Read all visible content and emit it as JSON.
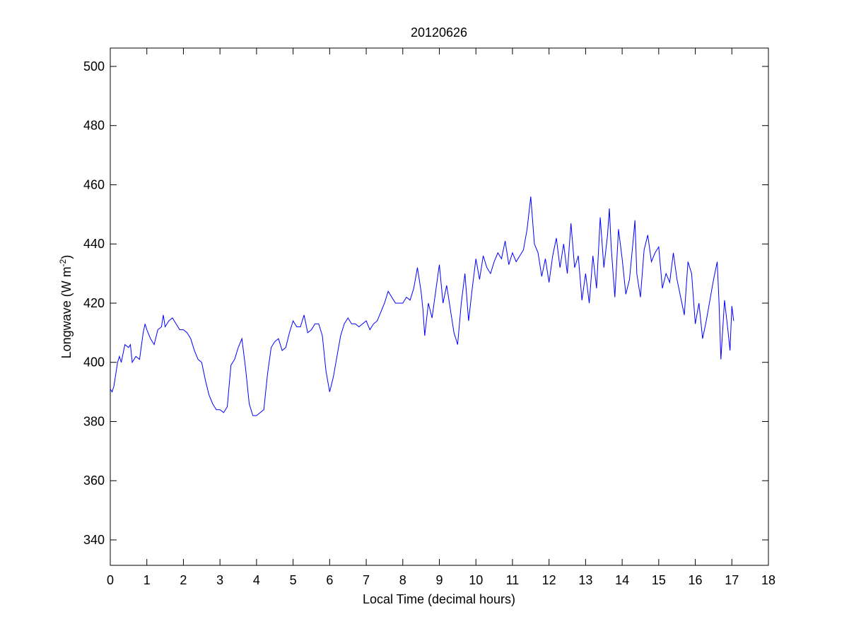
{
  "chart_data": {
    "type": "line",
    "title": "20120626",
    "xlabel": "Local Time (decimal hours)",
    "ylabel": [
      "Longwave (W m",
      "-2",
      ")"
    ],
    "x": [
      0,
      0.05,
      0.1,
      0.2,
      0.25,
      0.3,
      0.4,
      0.5,
      0.55,
      0.6,
      0.7,
      0.8,
      0.9,
      0.95,
      1.0,
      1.1,
      1.2,
      1.3,
      1.4,
      1.45,
      1.5,
      1.6,
      1.7,
      1.8,
      1.9,
      2.0,
      2.1,
      2.2,
      2.3,
      2.4,
      2.5,
      2.6,
      2.7,
      2.8,
      2.9,
      3.0,
      3.1,
      3.2,
      3.3,
      3.4,
      3.5,
      3.6,
      3.7,
      3.8,
      3.9,
      4.0,
      4.1,
      4.2,
      4.3,
      4.4,
      4.5,
      4.6,
      4.7,
      4.8,
      4.9,
      5.0,
      5.1,
      5.2,
      5.3,
      5.4,
      5.5,
      5.6,
      5.7,
      5.8,
      5.9,
      6.0,
      6.1,
      6.2,
      6.3,
      6.4,
      6.5,
      6.6,
      6.7,
      6.8,
      6.9,
      7.0,
      7.1,
      7.2,
      7.3,
      7.4,
      7.5,
      7.6,
      7.7,
      7.8,
      7.9,
      8.0,
      8.1,
      8.2,
      8.3,
      8.4,
      8.5,
      8.55,
      8.6,
      8.7,
      8.8,
      8.9,
      9.0,
      9.1,
      9.2,
      9.3,
      9.4,
      9.5,
      9.6,
      9.7,
      9.8,
      9.9,
      10.0,
      10.1,
      10.2,
      10.3,
      10.4,
      10.5,
      10.6,
      10.7,
      10.8,
      10.9,
      11.0,
      11.1,
      11.2,
      11.3,
      11.4,
      11.5,
      11.6,
      11.7,
      11.8,
      11.9,
      12.0,
      12.1,
      12.2,
      12.3,
      12.4,
      12.5,
      12.6,
      12.7,
      12.8,
      12.9,
      13.0,
      13.1,
      13.2,
      13.3,
      13.4,
      13.5,
      13.6,
      13.65,
      13.7,
      13.8,
      13.9,
      14.0,
      14.1,
      14.2,
      14.3,
      14.35,
      14.4,
      14.5,
      14.6,
      14.7,
      14.8,
      14.9,
      15.0,
      15.1,
      15.2,
      15.3,
      15.4,
      15.5,
      15.6,
      15.7,
      15.8,
      15.9,
      16.0,
      16.1,
      16.2,
      16.3,
      16.4,
      16.5,
      16.6,
      16.65,
      16.7,
      16.8,
      16.9,
      16.95,
      17.0,
      17.05
    ],
    "series": [
      {
        "name": "Longwave",
        "color": "#0000ff",
        "values": [
          391,
          390,
          392,
          400,
          402,
          400,
          406,
          405,
          406,
          400,
          402,
          401,
          410,
          413,
          411,
          408,
          406,
          411,
          412,
          416,
          412,
          414,
          415,
          413,
          411,
          411,
          410,
          408,
          404,
          401,
          400,
          394,
          389,
          386,
          384,
          384,
          383,
          385,
          399,
          401,
          405,
          408,
          398,
          386,
          382,
          382,
          383,
          384,
          396,
          405,
          407,
          408,
          404,
          405,
          410,
          414,
          412,
          412,
          416,
          410,
          411,
          413,
          413,
          409,
          397,
          390,
          395,
          402,
          409,
          413,
          415,
          413,
          413,
          412,
          413,
          414,
          411,
          413,
          414,
          417,
          420,
          424,
          422,
          420,
          420,
          420,
          422,
          421,
          425,
          432,
          424,
          418,
          409,
          420,
          415,
          424,
          433,
          420,
          426,
          418,
          410,
          406,
          420,
          430,
          414,
          425,
          435,
          428,
          436,
          432,
          430,
          434,
          437,
          435,
          441,
          433,
          437,
          434,
          436,
          438,
          445,
          456,
          440,
          437,
          429,
          435,
          427,
          436,
          442,
          432,
          440,
          430,
          447,
          432,
          436,
          421,
          430,
          420,
          436,
          425,
          449,
          432,
          443,
          452,
          439,
          422,
          445,
          435,
          423,
          428,
          441,
          448,
          430,
          422,
          438,
          443,
          434,
          437,
          439,
          425,
          430,
          427,
          437,
          428,
          422,
          416,
          434,
          430,
          413,
          420,
          408,
          414,
          421,
          428,
          434,
          420,
          401,
          421,
          410,
          404,
          419,
          414
        ]
      }
    ],
    "xlim": [
      0,
      18
    ],
    "xticks": [
      0,
      1,
      2,
      3,
      4,
      5,
      6,
      7,
      8,
      9,
      10,
      11,
      12,
      13,
      14,
      15,
      16,
      17,
      18
    ],
    "ylim": [
      331.4,
      506.2
    ],
    "yticks": [
      340,
      360,
      380,
      400,
      420,
      440,
      460,
      480,
      500
    ]
  }
}
